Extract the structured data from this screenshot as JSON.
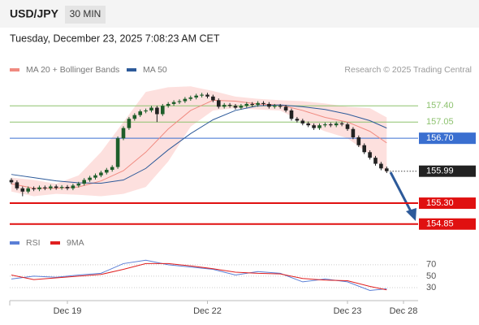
{
  "header": {
    "symbol": "USD/JPY",
    "interval": "30 MIN",
    "timestamp": "Tuesday, December 23, 2025 7:08:23 AM CET",
    "credit": "Research © 2025 Trading Central"
  },
  "chart_data": [
    {
      "type": "candlestick",
      "categories": [
        null,
        null,
        null,
        null,
        null,
        null,
        null,
        null,
        null,
        null,
        "Dec 19",
        null,
        null,
        null,
        null,
        null,
        null,
        null,
        null,
        null,
        null,
        null,
        null,
        null,
        null,
        null,
        null,
        null,
        null,
        null,
        null,
        null,
        null,
        null,
        null,
        "Dec 22",
        null,
        null,
        null,
        null,
        null,
        null,
        null,
        null,
        null,
        null,
        null,
        null,
        null,
        null,
        null,
        null,
        null,
        null,
        null,
        null,
        null,
        null,
        null,
        null,
        "Dec 23",
        null,
        null,
        null,
        null,
        null,
        null,
        null,
        null,
        null,
        "Dec 28"
      ],
      "open": [
        155.8,
        155.75,
        155.62,
        155.55,
        155.62,
        155.6,
        155.64,
        155.62,
        155.66,
        155.63,
        155.65,
        155.62,
        155.68,
        155.72,
        155.8,
        155.85,
        155.9,
        155.96,
        156.02,
        156.08,
        156.7,
        156.92,
        157.12,
        157.2,
        157.28,
        157.3,
        157.36,
        157.22,
        157.4,
        157.44,
        157.48,
        157.5,
        157.55,
        157.58,
        157.62,
        157.64,
        157.6,
        157.52,
        157.38,
        157.42,
        157.4,
        157.36,
        157.4,
        157.44,
        157.42,
        157.46,
        157.44,
        157.38,
        157.4,
        157.38,
        157.3,
        157.12,
        157.08,
        157.02,
        156.98,
        156.92,
        156.98,
        157.0,
        156.98,
        157.02,
        157.0,
        156.9,
        156.72,
        156.55,
        156.4,
        156.28,
        156.15,
        156.05,
        null,
        null,
        null
      ],
      "high": [
        155.84,
        155.79,
        155.66,
        155.66,
        155.66,
        155.68,
        155.68,
        155.7,
        155.7,
        155.69,
        155.69,
        155.72,
        155.76,
        155.84,
        155.89,
        155.94,
        156.0,
        156.06,
        156.12,
        156.74,
        156.96,
        157.16,
        157.24,
        157.32,
        157.34,
        157.4,
        157.4,
        157.44,
        157.48,
        157.52,
        157.54,
        157.59,
        157.62,
        157.66,
        157.68,
        157.68,
        157.64,
        157.56,
        157.46,
        157.46,
        157.44,
        157.44,
        157.48,
        157.48,
        157.5,
        157.5,
        157.48,
        157.44,
        157.44,
        157.42,
        157.34,
        157.16,
        157.12,
        157.06,
        157.02,
        157.02,
        157.04,
        157.04,
        157.06,
        157.06,
        157.04,
        156.94,
        156.76,
        156.59,
        156.44,
        156.32,
        156.19,
        156.09,
        null,
        null,
        null
      ],
      "low": [
        155.71,
        155.58,
        155.45,
        155.51,
        155.56,
        155.56,
        155.58,
        155.58,
        155.59,
        155.59,
        155.58,
        155.58,
        155.64,
        155.68,
        155.76,
        155.81,
        155.86,
        155.92,
        155.98,
        156.04,
        156.66,
        156.88,
        157.08,
        157.16,
        157.24,
        157.26,
        157.05,
        157.18,
        157.36,
        157.4,
        157.44,
        157.46,
        157.51,
        157.54,
        157.58,
        157.56,
        157.48,
        157.34,
        157.34,
        157.36,
        157.32,
        157.32,
        157.36,
        157.38,
        157.38,
        157.4,
        157.34,
        157.34,
        157.34,
        157.26,
        157.08,
        157.04,
        156.98,
        156.94,
        156.88,
        156.88,
        156.94,
        156.94,
        156.94,
        156.96,
        156.86,
        156.68,
        156.51,
        156.36,
        156.24,
        156.11,
        156.01,
        155.95,
        null,
        null,
        null
      ],
      "close": [
        155.75,
        155.62,
        155.55,
        155.62,
        155.6,
        155.64,
        155.62,
        155.66,
        155.63,
        155.65,
        155.62,
        155.68,
        155.72,
        155.8,
        155.85,
        155.9,
        155.96,
        156.02,
        156.08,
        156.7,
        156.92,
        157.12,
        157.2,
        157.28,
        157.3,
        157.36,
        157.22,
        157.4,
        157.44,
        157.48,
        157.5,
        157.55,
        157.58,
        157.62,
        157.64,
        157.6,
        157.52,
        157.38,
        157.42,
        157.4,
        157.36,
        157.4,
        157.44,
        157.42,
        157.46,
        157.44,
        157.38,
        157.4,
        157.38,
        157.3,
        157.12,
        157.08,
        157.02,
        156.98,
        156.92,
        156.98,
        157.0,
        156.98,
        157.02,
        157.0,
        156.9,
        156.72,
        156.55,
        156.4,
        156.28,
        156.15,
        156.05,
        155.99,
        null,
        null,
        null
      ],
      "up_color": "#1e5e2a",
      "down_color": "#222222",
      "series": [
        {
          "name": "MA 20 + Bollinger Bands",
          "color": "#f08a80",
          "band_color": "#fde0de",
          "x": [
            0,
            4,
            8,
            12,
            16,
            20,
            24,
            28,
            32,
            36,
            40,
            44,
            48,
            52,
            56,
            60,
            64,
            67
          ],
          "values": [
            155.72,
            155.62,
            155.62,
            155.65,
            155.78,
            156.0,
            156.4,
            156.9,
            157.3,
            157.52,
            157.5,
            157.44,
            157.42,
            157.3,
            157.15,
            157.05,
            156.85,
            156.6
          ],
          "upper": [
            155.85,
            155.8,
            155.72,
            155.9,
            156.4,
            157.05,
            157.7,
            157.8,
            157.82,
            157.72,
            157.6,
            157.55,
            157.52,
            157.5,
            157.45,
            157.38,
            157.35,
            157.15
          ],
          "lower": [
            155.55,
            155.45,
            155.5,
            155.48,
            155.45,
            155.5,
            155.65,
            156.2,
            156.95,
            157.3,
            157.35,
            157.32,
            157.3,
            157.05,
            156.85,
            156.7,
            156.35,
            155.95
          ]
        },
        {
          "name": "MA 50",
          "color": "#2d5a9a",
          "x": [
            0,
            4,
            8,
            12,
            16,
            20,
            24,
            28,
            32,
            36,
            40,
            44,
            48,
            52,
            56,
            60,
            64,
            67
          ],
          "values": [
            155.92,
            155.85,
            155.78,
            155.74,
            155.73,
            155.8,
            156.05,
            156.45,
            156.8,
            157.1,
            157.3,
            157.4,
            157.42,
            157.38,
            157.32,
            157.22,
            157.08,
            156.92
          ]
        }
      ],
      "levels": [
        {
          "value": 157.4,
          "label": "157.40",
          "color": "#8dc26f",
          "style": "line"
        },
        {
          "value": 157.05,
          "label": "157.05",
          "color": "#8dc26f",
          "style": "line"
        },
        {
          "value": 156.7,
          "label": "156.70",
          "color": "#3a6fd0",
          "style": "box"
        },
        {
          "value": 155.99,
          "label": "155.99",
          "color": "#222222",
          "style": "dotted-box"
        },
        {
          "value": 155.3,
          "label": "155.30",
          "color": "#e01010",
          "style": "box"
        },
        {
          "value": 154.85,
          "label": "154.85",
          "color": "#e01010",
          "style": "box"
        }
      ],
      "ylim": [
        154.6,
        158.0
      ]
    },
    {
      "type": "line",
      "series": [
        {
          "name": "RSI",
          "color": "#5b7fd6",
          "x": [
            0,
            4,
            8,
            12,
            16,
            20,
            24,
            28,
            32,
            36,
            40,
            44,
            48,
            52,
            56,
            60,
            64,
            67
          ],
          "values": [
            45,
            50,
            48,
            52,
            55,
            72,
            78,
            70,
            66,
            62,
            52,
            58,
            55,
            40,
            45,
            40,
            25,
            28
          ]
        },
        {
          "name": "9MA",
          "color": "#e02020",
          "x": [
            0,
            4,
            8,
            12,
            16,
            20,
            24,
            28,
            32,
            36,
            40,
            44,
            48,
            52,
            56,
            60,
            64,
            67
          ],
          "values": [
            52,
            44,
            47,
            50,
            53,
            62,
            72,
            72,
            68,
            63,
            57,
            55,
            54,
            46,
            43,
            42,
            32,
            26
          ]
        }
      ],
      "ylim": [
        10,
        84
      ],
      "yticks": [
        70,
        50,
        30
      ],
      "grid": true
    }
  ]
}
